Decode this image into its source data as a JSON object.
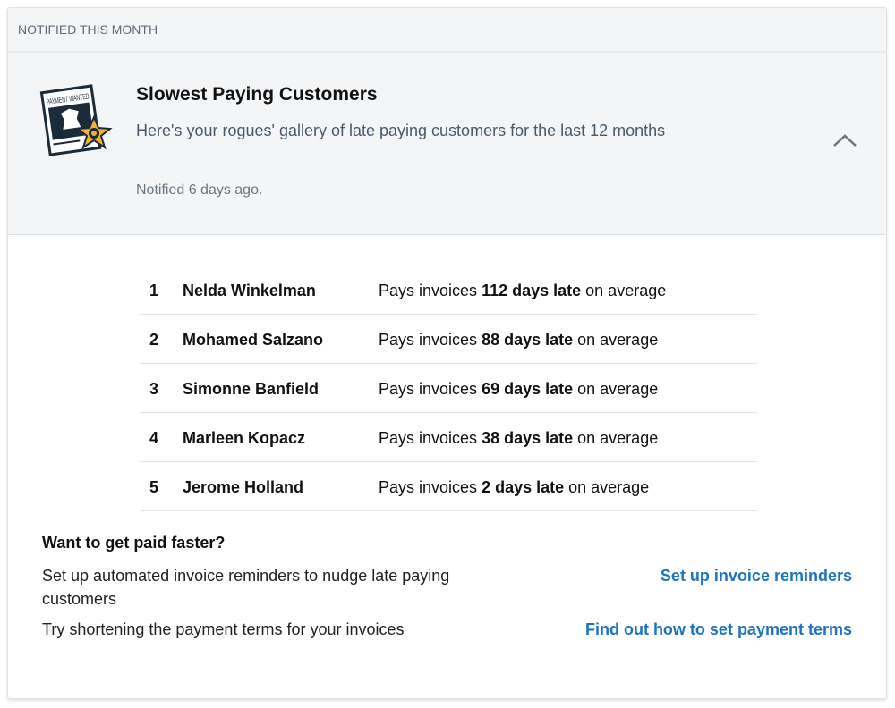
{
  "section_label": "NOTIFIED THIS MONTH",
  "notification": {
    "title": "Slowest Paying Customers",
    "description": "Here's your rogues' gallery of late paying customers for the last 12 months",
    "notified": "Notified 6 days ago.",
    "icon": "wanted-poster-sheriff-badge-icon",
    "icon_text": "PAYMENT WANTED"
  },
  "rows": [
    {
      "rank": "1",
      "name": "Nelda Winkelman",
      "prefix": "Pays invoices ",
      "late": "112 days late",
      "suffix": " on average"
    },
    {
      "rank": "2",
      "name": "Mohamed Salzano",
      "prefix": "Pays invoices ",
      "late": "88 days late",
      "suffix": " on average"
    },
    {
      "rank": "3",
      "name": "Simonne Banfield",
      "prefix": "Pays invoices ",
      "late": "69 days late",
      "suffix": " on average"
    },
    {
      "rank": "4",
      "name": "Marleen Kopacz",
      "prefix": "Pays invoices ",
      "late": "38 days late",
      "suffix": " on average"
    },
    {
      "rank": "5",
      "name": "Jerome Holland",
      "prefix": "Pays invoices ",
      "late": "2 days late",
      "suffix": " on average"
    }
  ],
  "tips": {
    "heading": "Want to get paid faster?",
    "tip1": "Set up automated invoice reminders to nudge late paying customers",
    "link1": "Set up invoice reminders",
    "tip2": "Try shortening the payment terms for your invoices",
    "link2": "Find out how to set payment terms"
  },
  "colors": {
    "link": "#1f73c1",
    "header_bg": "#f4f5f7"
  }
}
